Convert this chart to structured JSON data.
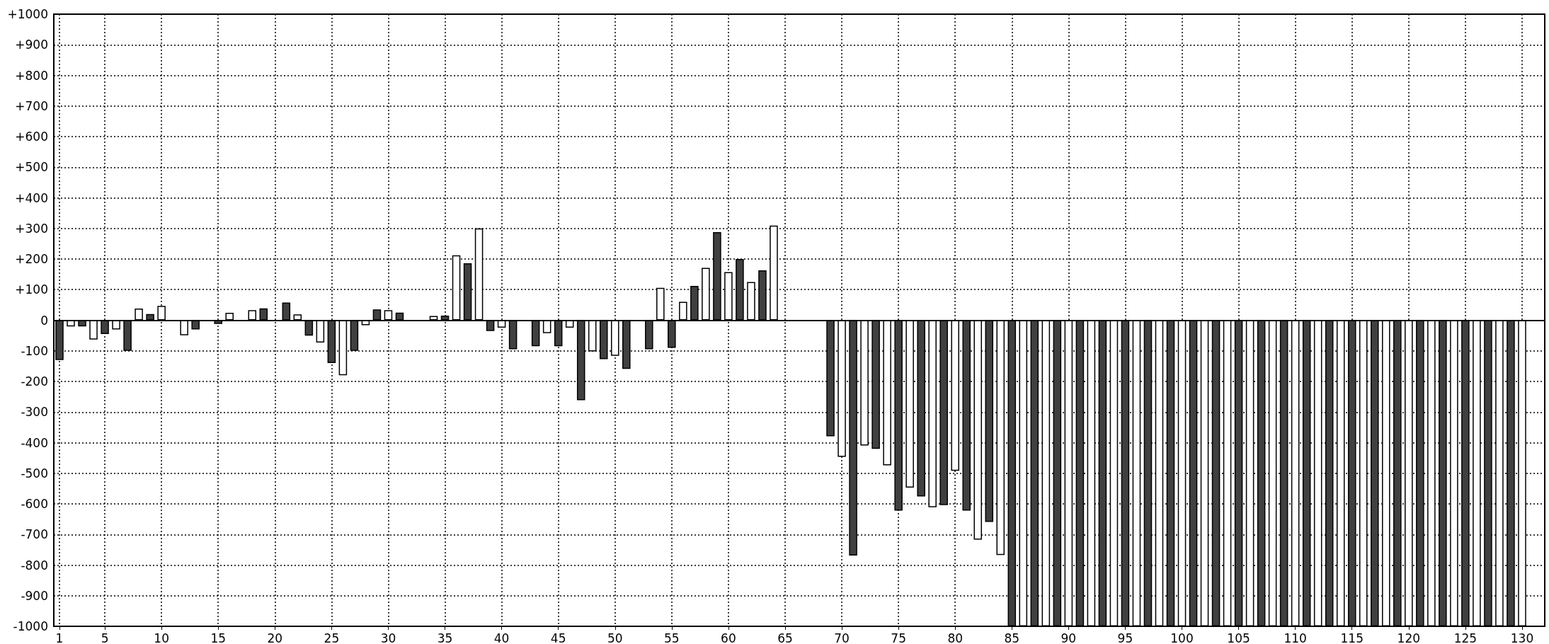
{
  "chart_data": {
    "type": "bar",
    "x": [
      1,
      2,
      3,
      4,
      5,
      6,
      7,
      8,
      9,
      10,
      11,
      12,
      13,
      14,
      15,
      16,
      17,
      18,
      19,
      20,
      21,
      22,
      23,
      24,
      25,
      26,
      27,
      28,
      29,
      30,
      31,
      32,
      33,
      34,
      35,
      36,
      37,
      38,
      39,
      40,
      41,
      42,
      43,
      44,
      45,
      46,
      47,
      48,
      49,
      50,
      51,
      52,
      53,
      54,
      55,
      56,
      57,
      58,
      59,
      60,
      61,
      62,
      63,
      64,
      65,
      66,
      67,
      68,
      69,
      70,
      71,
      72,
      73,
      74,
      75,
      76,
      77,
      78,
      79,
      80,
      81,
      82,
      83,
      84,
      85,
      86,
      87,
      88,
      89,
      90,
      91,
      92,
      93,
      94,
      95,
      96,
      97,
      98,
      99,
      100,
      101,
      102,
      103,
      104,
      105,
      106,
      107,
      108,
      109,
      110,
      111,
      112,
      113,
      114,
      115,
      116,
      117,
      118,
      119,
      120,
      121,
      122,
      123,
      124,
      125,
      126,
      127,
      128,
      129,
      130
    ],
    "values": [
      -130,
      -20,
      -20,
      -63,
      -45,
      -30,
      -100,
      38,
      20,
      47,
      null,
      -49,
      -30,
      null,
      -12,
      24,
      null,
      33,
      39,
      null,
      58,
      19,
      -50,
      -73,
      -140,
      -180,
      -100,
      -16,
      35,
      33,
      25,
      null,
      null,
      14,
      15,
      212,
      186,
      300,
      -35,
      -24,
      -95,
      null,
      -85,
      -42,
      -85,
      -24,
      -261,
      -102,
      -127,
      -116,
      -159,
      null,
      -95,
      106,
      -90,
      60,
      112,
      171,
      288,
      157,
      200,
      125,
      163,
      309,
      null,
      null,
      null,
      null,
      -379,
      -446,
      -769,
      -409,
      -420,
      -474,
      -622,
      -547,
      -576,
      -611,
      -604,
      -492,
      -622,
      -717,
      -659,
      -767,
      -1000,
      -1000,
      -1000,
      -1000,
      -1000,
      -1000,
      -1000,
      -1000,
      -1000,
      -1000,
      -1000,
      -1000,
      -1000,
      -1000,
      -1000,
      -1000,
      -1000,
      -1000,
      -1000,
      -1000,
      -1000,
      -1000,
      -1000,
      -1000,
      -1000,
      -1000,
      -1000,
      -1000,
      -1000,
      -1000,
      -1000,
      -1000,
      -1000,
      -1000,
      -1000,
      -1000,
      -1000,
      -1000,
      -1000,
      -1000,
      -1000,
      -1000,
      -1000,
      -1000,
      -1000,
      -1000
    ],
    "colors": [
      "#404040",
      "#ffffff",
      "#404040",
      "#ffffff",
      "#404040",
      "#ffffff",
      "#404040",
      "#ffffff",
      "#404040",
      "#ffffff",
      "#404040",
      "#ffffff",
      "#404040",
      "#ffffff",
      "#404040",
      "#ffffff",
      "#404040",
      "#ffffff",
      "#404040",
      "#ffffff",
      "#404040",
      "#ffffff",
      "#404040",
      "#ffffff",
      "#404040",
      "#ffffff",
      "#404040",
      "#ffffff",
      "#404040",
      "#ffffff",
      "#404040",
      "#ffffff",
      "#404040",
      "#ffffff",
      "#404040",
      "#ffffff",
      "#404040",
      "#ffffff",
      "#404040",
      "#ffffff",
      "#404040",
      "#ffffff",
      "#404040",
      "#ffffff",
      "#404040",
      "#ffffff",
      "#404040",
      "#ffffff",
      "#404040",
      "#ffffff",
      "#404040",
      "#ffffff",
      "#404040",
      "#ffffff",
      "#404040",
      "#ffffff",
      "#404040",
      "#ffffff",
      "#404040",
      "#ffffff",
      "#404040",
      "#ffffff",
      "#404040",
      "#ffffff",
      "#404040",
      "#ffffff",
      "#404040",
      "#ffffff",
      "#404040",
      "#ffffff",
      "#404040",
      "#ffffff",
      "#404040",
      "#ffffff",
      "#404040",
      "#ffffff",
      "#404040",
      "#ffffff",
      "#404040",
      "#ffffff",
      "#404040",
      "#ffffff",
      "#404040",
      "#ffffff",
      "#404040",
      "#ffffff",
      "#404040",
      "#ffffff",
      "#404040",
      "#ffffff",
      "#404040",
      "#ffffff",
      "#404040",
      "#ffffff",
      "#404040",
      "#ffffff",
      "#404040",
      "#ffffff",
      "#404040",
      "#ffffff",
      "#404040",
      "#ffffff",
      "#404040",
      "#ffffff",
      "#404040",
      "#ffffff",
      "#404040",
      "#ffffff",
      "#404040",
      "#ffffff",
      "#404040",
      "#ffffff",
      "#404040",
      "#ffffff",
      "#404040",
      "#ffffff",
      "#404040",
      "#ffffff",
      "#404040",
      "#ffffff",
      "#404040",
      "#ffffff",
      "#404040",
      "#ffffff",
      "#404040",
      "#ffffff",
      "#404040",
      "#ffffff",
      "#404040",
      "#ffffff"
    ],
    "xlim": [
      0.5,
      132
    ],
    "xticks": [
      1,
      5,
      10,
      15,
      20,
      25,
      30,
      35,
      40,
      45,
      50,
      55,
      60,
      65,
      70,
      75,
      80,
      85,
      90,
      95,
      100,
      105,
      110,
      115,
      120,
      125,
      130
    ],
    "ylim": [
      -1000,
      1000
    ],
    "yticks": [
      {
        "value": 1000,
        "label": "+1000"
      },
      {
        "value": 900,
        "label": "+900"
      },
      {
        "value": 800,
        "label": "+800"
      },
      {
        "value": 700,
        "label": "+700"
      },
      {
        "value": 600,
        "label": "+600"
      },
      {
        "value": 500,
        "label": "+500"
      },
      {
        "value": 400,
        "label": "+400"
      },
      {
        "value": 300,
        "label": "+300"
      },
      {
        "value": 200,
        "label": "+200"
      },
      {
        "value": 100,
        "label": "+100"
      },
      0,
      -100,
      -200,
      -300,
      -400,
      -500,
      -600,
      -700,
      -800,
      -900,
      -1000
    ],
    "grid": true
  }
}
